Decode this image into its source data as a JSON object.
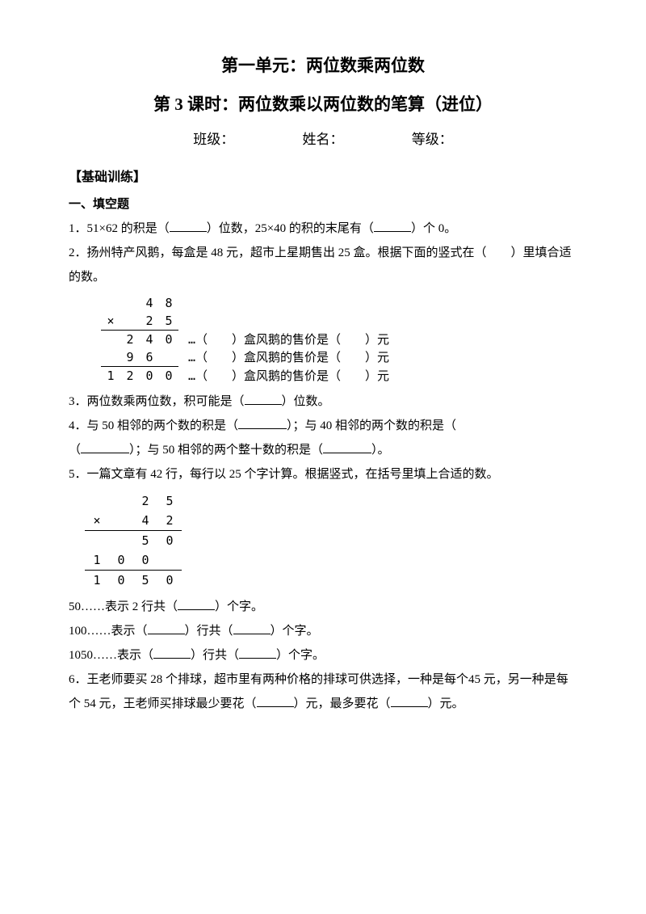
{
  "title1": "第一单元：两位数乘两位数",
  "title2": "第 3 课时：两位数乘以两位数的笔算（进位）",
  "info": {
    "class_label": "班级：",
    "name_label": "姓名：",
    "grade_label": "等级："
  },
  "section_basic": "【基础训练】",
  "sec_fill_head": "一、填空题",
  "q1": {
    "a": "1．51×62 的积是（",
    "b": "）位数，25×40 的积的末尾有（",
    "c": "）个 0。"
  },
  "q2": {
    "a": "2．扬州特产风鹅，每盒是 48 元，超市上星期售出 25 盒。根据下面的竖式在（　　）里填合适的数。"
  },
  "calc1": {
    "r1": [
      "",
      "",
      "4",
      "8"
    ],
    "r2": [
      "×",
      "",
      "2",
      "5"
    ],
    "r3": [
      "",
      "2",
      "4",
      "0"
    ],
    "r3_txt": "…（　　）盒风鹅的售价是（　　）元",
    "r4": [
      "",
      "9",
      "6",
      ""
    ],
    "r4_txt": "…（　　）盒风鹅的售价是（　　）元",
    "r5": [
      "1",
      "2",
      "0",
      "0"
    ],
    "r5_txt": "…（　　）盒风鹅的售价是（　　）元"
  },
  "q3": {
    "a": "3．两位数乘两位数，积可能是（",
    "b": "）位数。"
  },
  "q4": {
    "a": "4．与 50 相邻的两个数的积是（",
    "b": "）；与 40 相邻的两个数的积是（",
    "c": "）；与 50 相邻的两个整十数的积是（",
    "d": "）。"
  },
  "q5": {
    "a": "5．一篇文章有 42 行，每行以 25 个字计算。根据竖式，在括号里填上合适的数。"
  },
  "calc2": {
    "r1": [
      "",
      "",
      "2",
      "5"
    ],
    "r2": [
      "×",
      "",
      "4",
      "2"
    ],
    "r3": [
      "",
      "",
      "5",
      "0"
    ],
    "r4": [
      "1",
      "0",
      "0",
      ""
    ],
    "r5": [
      "1",
      "0",
      "5",
      "0"
    ]
  },
  "q5b": {
    "l1a": "50……表示 2 行共（",
    "l1b": "）个字。",
    "l2a": "100……表示（",
    "l2b": "）行共（",
    "l2c": "）个字。",
    "l3a": "1050……表示（",
    "l3b": "）行共（",
    "l3c": "）个字。"
  },
  "q6": {
    "a": "6．王老师要买 28 个排球，超市里有两种价格的排球可供选择，一种是每个45 元，另一种是每个 54 元，王老师买排球最少要花（",
    "b": "）元，最多要花（",
    "c": "）元。"
  }
}
